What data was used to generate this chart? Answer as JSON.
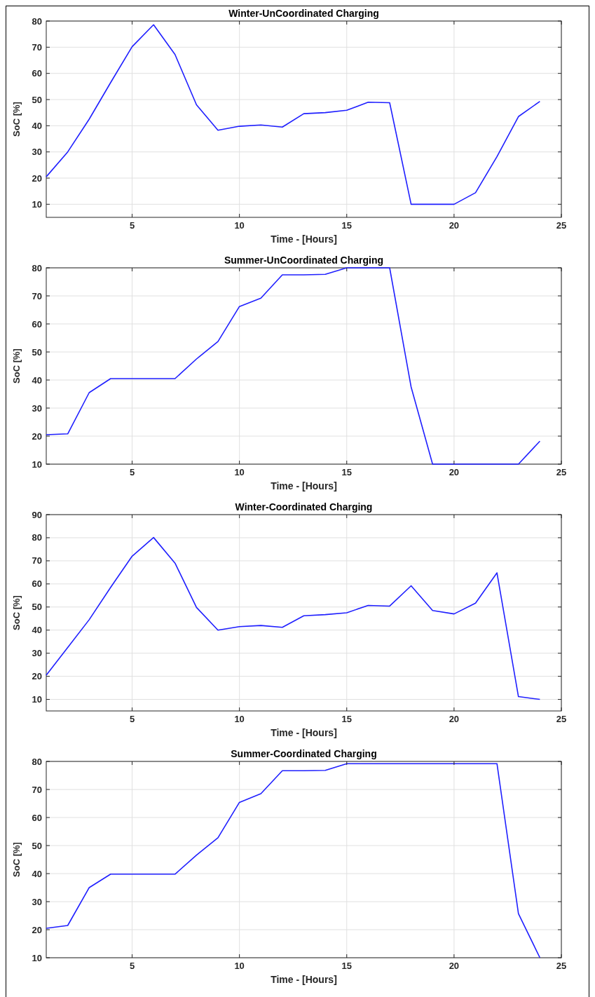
{
  "chart_data": [
    {
      "type": "line",
      "title": "Winter-UnCoordinated Charging",
      "xlabel": "Time - [Hours]",
      "ylabel": "SoC [%]",
      "x": [
        1,
        2,
        3,
        4,
        5,
        6,
        7,
        8,
        9,
        10,
        11,
        12,
        13,
        14,
        15,
        16,
        17,
        18,
        19,
        20,
        21,
        22,
        23,
        24
      ],
      "xlim": [
        1,
        25
      ],
      "xticks": [
        5,
        10,
        15,
        20,
        25
      ],
      "ylim": [
        5,
        80
      ],
      "yticks": [
        10,
        20,
        30,
        40,
        50,
        60,
        70,
        80
      ],
      "grid": true,
      "marker": "none",
      "line_style": "solid",
      "series": [
        {
          "color": "#1f1fff",
          "values": [
            20.5,
            30,
            42.5,
            56.5,
            70.2,
            78.6,
            67.2,
            48,
            38.3,
            39.8,
            40.3,
            39.5,
            44.6,
            45,
            45.9,
            49,
            48.8,
            10,
            10,
            10,
            14.4,
            28.2,
            43.5,
            49.3
          ]
        }
      ]
    },
    {
      "type": "line",
      "title": "Summer-UnCoordinated Charging",
      "xlabel": "Time - [Hours]",
      "ylabel": "SoC [%]",
      "x": [
        1,
        2,
        3,
        4,
        5,
        6,
        7,
        8,
        9,
        10,
        11,
        12,
        13,
        14,
        15,
        16,
        17,
        18,
        19,
        20,
        21,
        22,
        23,
        24
      ],
      "xlim": [
        1,
        25
      ],
      "xticks": [
        5,
        10,
        15,
        20,
        25
      ],
      "ylim": [
        10,
        80
      ],
      "yticks": [
        10,
        20,
        30,
        40,
        50,
        60,
        70,
        80
      ],
      "grid": true,
      "marker": "none",
      "line_style": "solid",
      "series": [
        {
          "color": "#1f1fff",
          "values": [
            20.5,
            20.8,
            35.5,
            40.5,
            40.5,
            40.5,
            40.5,
            47.5,
            53.7,
            66.2,
            69.2,
            77.5,
            77.5,
            77.7,
            80,
            80,
            80,
            37.5,
            10,
            10,
            10,
            10,
            10,
            18.2
          ]
        }
      ]
    },
    {
      "type": "line",
      "title": "Winter-Coordinated Charging",
      "xlabel": "Time - [Hours]",
      "ylabel": "SoC [%]",
      "x": [
        1,
        2,
        3,
        4,
        5,
        6,
        7,
        8,
        9,
        10,
        11,
        12,
        13,
        14,
        15,
        16,
        17,
        18,
        19,
        20,
        21,
        22,
        23,
        24
      ],
      "xlim": [
        1,
        25
      ],
      "xticks": [
        5,
        10,
        15,
        20,
        25
      ],
      "ylim": [
        5,
        90
      ],
      "yticks": [
        10,
        20,
        30,
        40,
        50,
        60,
        70,
        80,
        90
      ],
      "grid": true,
      "marker": "none",
      "line_style": "solid",
      "series": [
        {
          "color": "#1f1fff",
          "values": [
            20.5,
            32.5,
            44.5,
            58.5,
            72,
            80.1,
            69,
            49.8,
            40,
            41.5,
            42,
            41.2,
            46.2,
            46.7,
            47.5,
            50.7,
            50.4,
            59.2,
            48.5,
            47,
            51.7,
            64.8,
            11.2,
            10
          ]
        }
      ]
    },
    {
      "type": "line",
      "title": "Summer-Coordinated Charging",
      "xlabel": "Time - [Hours]",
      "ylabel": "SoC [%]",
      "x": [
        1,
        2,
        3,
        4,
        5,
        6,
        7,
        8,
        9,
        10,
        11,
        12,
        13,
        14,
        15,
        16,
        17,
        18,
        19,
        20,
        21,
        22,
        23,
        24
      ],
      "xlim": [
        1,
        25
      ],
      "xticks": [
        5,
        10,
        15,
        20,
        25
      ],
      "ylim": [
        10,
        80
      ],
      "yticks": [
        10,
        20,
        30,
        40,
        50,
        60,
        70,
        80
      ],
      "grid": true,
      "marker": "none",
      "line_style": "solid",
      "series": [
        {
          "color": "#1f1fff",
          "values": [
            20.5,
            21.5,
            35,
            39.8,
            39.8,
            39.8,
            39.8,
            46.6,
            52.8,
            65.4,
            68.5,
            76.7,
            76.7,
            76.8,
            79.2,
            79.2,
            79.2,
            79.2,
            79.2,
            79.2,
            79.2,
            79.2,
            25.7,
            10
          ]
        }
      ]
    }
  ]
}
